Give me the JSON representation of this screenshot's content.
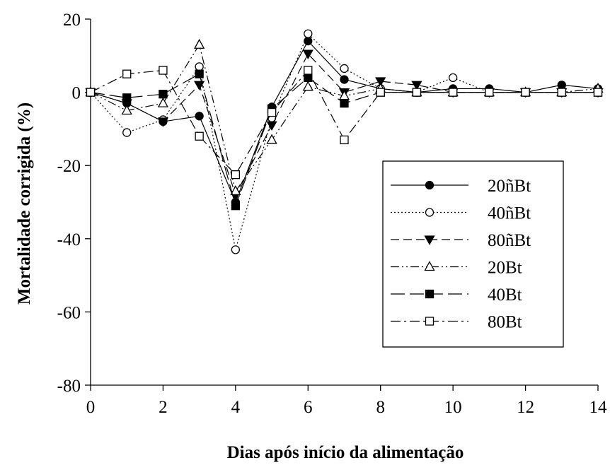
{
  "chart_data": {
    "type": "line",
    "xlabel": "Dias após início da alimentação",
    "ylabel": "Mortalidade corrigida (%)",
    "xlim": [
      0,
      14
    ],
    "ylim": [
      -80,
      20
    ],
    "xticks": [
      0,
      2,
      4,
      6,
      8,
      10,
      12,
      14
    ],
    "yticks": [
      20,
      0,
      -20,
      -40,
      -60,
      -80
    ],
    "grid": false,
    "legend_position": "right",
    "x": [
      0,
      1,
      2,
      3,
      4,
      5,
      6,
      7,
      8,
      9,
      10,
      11,
      12,
      13,
      14
    ],
    "series": [
      {
        "name": "20ñBt",
        "marker": "circle-filled",
        "dash": "solid",
        "values": [
          0,
          -3,
          -8,
          -6.5,
          -30,
          -4,
          14,
          3.5,
          1,
          0,
          1,
          1,
          0,
          2,
          1
        ]
      },
      {
        "name": "40ñBt",
        "marker": "circle-open",
        "dash": "dotted",
        "values": [
          0,
          -11,
          -7.5,
          7,
          -43,
          -7,
          16,
          6.5,
          1,
          0,
          4,
          0,
          0,
          0,
          0
        ]
      },
      {
        "name": "80ñBt",
        "marker": "triangle-down-filled",
        "dash": "dashed",
        "values": [
          0,
          -3,
          -8,
          2,
          -28,
          -9,
          10.5,
          0,
          3,
          2,
          0,
          0,
          0,
          0,
          0
        ]
      },
      {
        "name": "20Bt",
        "marker": "triangle-up-open",
        "dash": "dashdotdot",
        "values": [
          0,
          -5,
          -3,
          13,
          -27,
          -13,
          1.5,
          -1,
          1,
          0,
          0,
          0,
          0,
          0,
          1
        ]
      },
      {
        "name": "40Bt",
        "marker": "square-filled",
        "dash": "longdash",
        "values": [
          0,
          -1.5,
          -0.5,
          5,
          -31,
          -4.5,
          4,
          -3,
          0,
          0,
          0,
          0,
          0,
          0,
          0
        ]
      },
      {
        "name": "80Bt",
        "marker": "square-open",
        "dash": "dashdot",
        "values": [
          0,
          5,
          6,
          -12,
          -22.5,
          -5.5,
          6,
          -13,
          0,
          0,
          0,
          0,
          0,
          0,
          0
        ]
      }
    ]
  }
}
